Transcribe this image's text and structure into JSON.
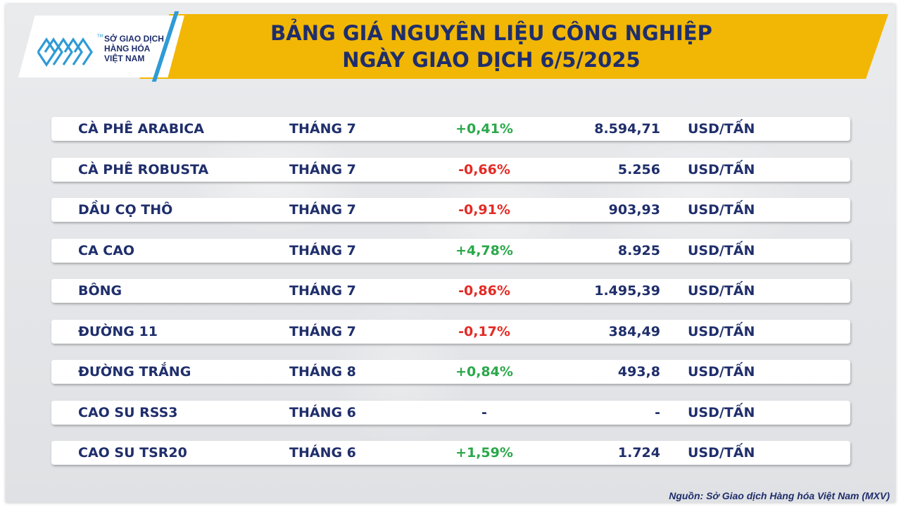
{
  "header": {
    "title_line1": "BẢNG GIÁ NGUYÊN LIỆU CÔNG NGHIỆP",
    "title_line2": "NGÀY GIAO DỊCH 6/5/2025",
    "band_color": "#f2b705"
  },
  "logo": {
    "line1": "SỞ GIAO DỊCH",
    "line2": "HÀNG HÓA",
    "line3": "VIỆT NAM",
    "tm": "TM",
    "mark_color": "#2e9bd6"
  },
  "rows": [
    {
      "name": "CÀ PHÊ ARABICA",
      "month": "THÁNG 7",
      "change": "+0,41%",
      "trend": "up",
      "price": "8.594,71",
      "unit": "USD/TẤN"
    },
    {
      "name": "CÀ PHÊ ROBUSTA",
      "month": "THÁNG 7",
      "change": "-0,66%",
      "trend": "down",
      "price": "5.256",
      "unit": "USD/TẤN"
    },
    {
      "name": "DẦU CỌ THÔ",
      "month": "THÁNG 7",
      "change": "-0,91%",
      "trend": "down",
      "price": "903,93",
      "unit": "USD/TẤN"
    },
    {
      "name": "CA CAO",
      "month": "THÁNG 7",
      "change": "+4,78%",
      "trend": "up",
      "price": "8.925",
      "unit": "USD/TẤN"
    },
    {
      "name": "BÔNG",
      "month": "THÁNG 7",
      "change": "-0,86%",
      "trend": "down",
      "price": "1.495,39",
      "unit": "USD/TẤN"
    },
    {
      "name": "ĐƯỜNG 11",
      "month": "THÁNG 7",
      "change": "-0,17%",
      "trend": "down",
      "price": "384,49",
      "unit": "USD/TẤN"
    },
    {
      "name": "ĐƯỜNG TRẮNG",
      "month": "THÁNG 8",
      "change": "+0,84%",
      "trend": "up",
      "price": "493,8",
      "unit": "USD/TẤN"
    },
    {
      "name": "CAO SU RSS3",
      "month": "THÁNG 6",
      "change": "-",
      "trend": "flat",
      "price": "-",
      "unit": "USD/TẤN"
    },
    {
      "name": "CAO SU TSR20",
      "month": "THÁNG 6",
      "change": "+1,59%",
      "trend": "up",
      "price": "1.724",
      "unit": "USD/TẤN"
    }
  ],
  "colors": {
    "up": "#2aa84a",
    "down": "#e32b25",
    "text": "#1f2e6b"
  },
  "source": "Nguồn: Sở Giao dịch Hàng hóa Việt Nam (MXV)"
}
